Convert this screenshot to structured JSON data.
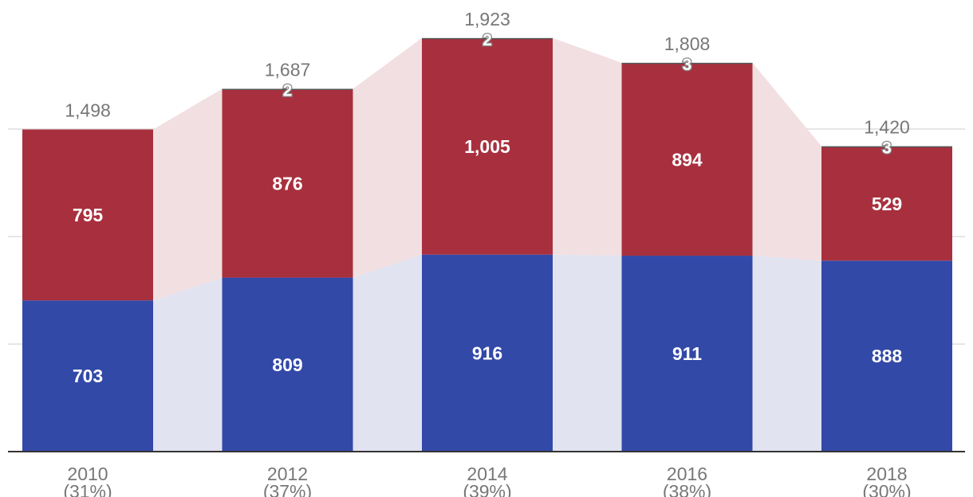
{
  "colors": {
    "blue": "#3349a8",
    "red": "#a8303e",
    "other": "#555555",
    "blue_band": "#e1e3f1",
    "red_band": "#f2dfe1",
    "grid": "#dddddd",
    "axis": "#333333"
  },
  "chart_data": {
    "type": "bar",
    "stacked": true,
    "categories": [
      "2010",
      "2012",
      "2014",
      "2016",
      "2018"
    ],
    "category_sublabels": [
      "(31%)",
      "(37%)",
      "(39%)",
      "(38%)",
      "(30%)"
    ],
    "series": [
      {
        "values": [
          703,
          809,
          916,
          911,
          888
        ]
      },
      {
        "values": [
          795,
          876,
          1005,
          894,
          529
        ]
      },
      {
        "values": [
          0,
          2,
          2,
          3,
          3
        ]
      }
    ],
    "totals": [
      "1,498",
      "1,687",
      "1,923",
      "1,808",
      "1,420"
    ],
    "value_labels": [
      [
        "703",
        "809",
        "916",
        "911",
        "888"
      ],
      [
        "795",
        "876",
        "1,005",
        "894",
        "529"
      ],
      [
        "",
        "2",
        "2",
        "3",
        "3"
      ]
    ],
    "ylim": [
      0,
      2000
    ],
    "grid": true,
    "legend": "none",
    "connector_bands": true
  }
}
